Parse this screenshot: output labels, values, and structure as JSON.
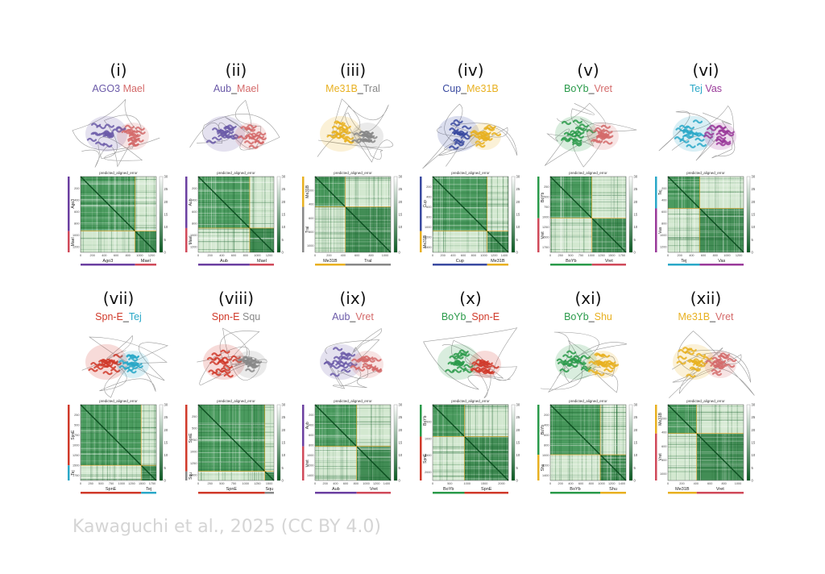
{
  "panels": [
    {
      "numeral": "(i)",
      "p1": "AGO3",
      "sep": " ",
      "p2": "Mael",
      "c1": "#6b5aa8",
      "c2": "#d46a6a",
      "pae_title": "predicted_aligned_error",
      "yaxis": [
        "Ago3",
        "Mael"
      ],
      "xaxis": [
        "Ago3",
        "Mael"
      ],
      "xticks": [
        "0",
        "200",
        "400",
        "600",
        "800",
        "1000",
        "1200"
      ],
      "yticks": [
        "200",
        "400",
        "600",
        "800",
        "1000",
        "1200"
      ],
      "split": 0.72,
      "bar1": "#6b3fa0",
      "bar2": "#d04a5a",
      "cbar": [
        "30",
        "25",
        "20",
        "15",
        "10",
        "5",
        "0"
      ]
    },
    {
      "numeral": "(ii)",
      "p1": "Aub",
      "sep": "_",
      "p2": "Mael",
      "c1": "#6b5aa8",
      "c2": "#d46a6a",
      "pae_title": "predicted_aligned_error",
      "yaxis": [
        "Aub",
        "Mael"
      ],
      "xaxis": [
        "Aub",
        "Mael"
      ],
      "xticks": [
        "0",
        "200",
        "400",
        "600",
        "800",
        "1000",
        "1200"
      ],
      "yticks": [
        "200",
        "400",
        "600",
        "800",
        "1000",
        "1200"
      ],
      "split": 0.68,
      "bar1": "#6b3fa0",
      "bar2": "#d04a5a",
      "cbar": [
        "30",
        "25",
        "20",
        "15",
        "10",
        "5",
        "0"
      ]
    },
    {
      "numeral": "(iii)",
      "p1": "Me31B",
      "sep": "_",
      "p2": "Tral",
      "c1": "#e8b020",
      "c2": "#888888",
      "pae_title": "predicted_aligned_error",
      "yaxis": [
        "Me31B",
        "Tral"
      ],
      "xaxis": [
        "Me31B",
        "Tral"
      ],
      "xticks": [
        "0",
        "200",
        "400",
        "600",
        "800",
        "1000"
      ],
      "yticks": [
        "200",
        "400",
        "600",
        "800",
        "1000"
      ],
      "split": 0.4,
      "bar1": "#e8b020",
      "bar2": "#888888",
      "cbar": [
        "30",
        "25",
        "20",
        "15",
        "10",
        "5",
        "0"
      ]
    },
    {
      "numeral": "(iv)",
      "p1": "Cup",
      "sep": "_",
      "p2": "Me31B",
      "c1": "#3a4aa0",
      "c2": "#e8b020",
      "pae_title": "predicted_aligned_error",
      "yaxis": [
        "Cup",
        "Me31B"
      ],
      "xaxis": [
        "Cup",
        "Me31B"
      ],
      "xticks": [
        "0",
        "200",
        "400",
        "600",
        "800",
        "1000",
        "1200",
        "1400"
      ],
      "yticks": [
        "200",
        "400",
        "600",
        "800",
        "1000",
        "1200",
        "1400"
      ],
      "split": 0.72,
      "bar1": "#3a4aa0",
      "bar2": "#e8b020",
      "cbar": [
        "30",
        "25",
        "20",
        "15",
        "10",
        "5",
        "0"
      ]
    },
    {
      "numeral": "(v)",
      "p1": "BoYb",
      "sep": "_",
      "p2": "Vret",
      "c1": "#2a9a4a",
      "c2": "#d46a6a",
      "pae_title": "predicted_aligned_error",
      "yaxis": [
        "BoYb",
        "Vret"
      ],
      "xaxis": [
        "BoYb",
        "Vret"
      ],
      "xticks": [
        "0",
        "250",
        "500",
        "750",
        "1000",
        "1250",
        "1500",
        "1750"
      ],
      "yticks": [
        "250",
        "500",
        "750",
        "1000",
        "1250",
        "1500",
        "1750"
      ],
      "split": 0.55,
      "bar1": "#2a9a4a",
      "bar2": "#d04a5a",
      "cbar": [
        "30",
        "25",
        "20",
        "15",
        "10",
        "5",
        "0"
      ]
    },
    {
      "numeral": "(vi)",
      "p1": "Tej",
      "sep": " ",
      "p2": "Vas",
      "c1": "#2aa8c8",
      "c2": "#9a3a9a",
      "pae_title": "predicted_aligned_error",
      "yaxis": [
        "Tej",
        "Vas"
      ],
      "xaxis": [
        "Tej",
        "Vas"
      ],
      "xticks": [
        "0",
        "200",
        "400",
        "600",
        "800",
        "1000",
        "1200"
      ],
      "yticks": [
        "200",
        "400",
        "600",
        "800",
        "1000",
        "1200"
      ],
      "split": 0.42,
      "bar1": "#2aa8c8",
      "bar2": "#9a3a9a",
      "cbar": [
        "30",
        "25",
        "20",
        "15",
        "10",
        "5",
        "0"
      ]
    },
    {
      "numeral": "(vii)",
      "p1": "Spn-E",
      "sep": "_",
      "p2": "Tej",
      "c1": "#d03a2a",
      "c2": "#2aa8c8",
      "pae_title": "predicted_aligned_error",
      "yaxis": [
        "SpnE",
        "Tej"
      ],
      "xaxis": [
        "SpnE",
        "Tej"
      ],
      "xticks": [
        "0",
        "250",
        "500",
        "750",
        "1000",
        "1250",
        "1500",
        "1750"
      ],
      "yticks": [
        "250",
        "500",
        "750",
        "1000",
        "1250",
        "1500",
        "1750"
      ],
      "split": 0.8,
      "bar1": "#d03a2a",
      "bar2": "#2aa8c8",
      "cbar": [
        "30",
        "25",
        "20",
        "15",
        "10",
        "5",
        "0"
      ]
    },
    {
      "numeral": "(viii)",
      "p1": "Spn-E",
      "sep": " ",
      "p2": "Squ",
      "c1": "#d03a2a",
      "c2": "#888888",
      "pae_title": "predicted_aligned_error",
      "yaxis": [
        "SpnE",
        "Squ"
      ],
      "xaxis": [
        "SpnE",
        "Squ"
      ],
      "xticks": [
        "0",
        "250",
        "500",
        "750",
        "1000",
        "1250",
        "1500"
      ],
      "yticks": [
        "250",
        "500",
        "750",
        "1000",
        "1250",
        "1500"
      ],
      "split": 0.88,
      "bar1": "#d03a2a",
      "bar2": "#888888",
      "cbar": [
        "30",
        "25",
        "20",
        "15",
        "10",
        "5",
        "0"
      ]
    },
    {
      "numeral": "(ix)",
      "p1": "Aub",
      "sep": "_",
      "p2": "Vret",
      "c1": "#6b5aa8",
      "c2": "#d46a6a",
      "pae_title": "predicted_aligned_error",
      "yaxis": [
        "Aub",
        "Vret"
      ],
      "xaxis": [
        "Aub",
        "Vret"
      ],
      "xticks": [
        "0",
        "200",
        "400",
        "600",
        "800",
        "1000",
        "1200",
        "1400"
      ],
      "yticks": [
        "200",
        "400",
        "600",
        "800",
        "1000",
        "1200",
        "1400"
      ],
      "split": 0.55,
      "bar1": "#6b3fa0",
      "bar2": "#d04a5a",
      "cbar": [
        "30",
        "25",
        "20",
        "15",
        "10",
        "5",
        "0"
      ]
    },
    {
      "numeral": "(x)",
      "p1": "BoYb",
      "sep": "_",
      "p2": "Spn-E",
      "c1": "#2a9a4a",
      "c2": "#d03a2a",
      "pae_title": "predicted_aligned_error",
      "yaxis": [
        "BoYb",
        "SpnE"
      ],
      "xaxis": [
        "BoYb",
        "SpnE"
      ],
      "xticks": [
        "0",
        "500",
        "1000",
        "1500",
        "2000"
      ],
      "yticks": [
        "500",
        "1000",
        "1500",
        "2000"
      ],
      "split": 0.42,
      "bar1": "#2a9a4a",
      "bar2": "#d03a2a",
      "cbar": [
        "30",
        "25",
        "20",
        "15",
        "10",
        "5",
        "0"
      ]
    },
    {
      "numeral": "(xi)",
      "p1": "BoYb",
      "sep": "_",
      "p2": "Shu",
      "c1": "#2a9a4a",
      "c2": "#e8b020",
      "pae_title": "predicted_aligned_error",
      "yaxis": [
        "BoYb",
        "Shu"
      ],
      "xaxis": [
        "BoYb",
        "Shu"
      ],
      "xticks": [
        "0",
        "200",
        "400",
        "600",
        "800",
        "1000",
        "1200",
        "1400"
      ],
      "yticks": [
        "200",
        "400",
        "600",
        "800",
        "1000",
        "1200",
        "1400"
      ],
      "split": 0.66,
      "bar1": "#2a9a4a",
      "bar2": "#e8b020",
      "cbar": [
        "30",
        "25",
        "20",
        "15",
        "10",
        "5",
        "0"
      ]
    },
    {
      "numeral": "(xii)",
      "p1": "Me31B",
      "sep": "_",
      "p2": "Vret",
      "c1": "#e8b020",
      "c2": "#d46a6a",
      "pae_title": "predicted_aligned_error",
      "yaxis": [
        "Me31B",
        "Vret"
      ],
      "xaxis": [
        "Me31B",
        "Vret"
      ],
      "xticks": [
        "0",
        "200",
        "400",
        "600",
        "800",
        "1000"
      ],
      "yticks": [
        "200",
        "400",
        "600",
        "800",
        "1000"
      ],
      "split": 0.38,
      "bar1": "#e8b020",
      "bar2": "#d04a5a",
      "cbar": [
        "30",
        "25",
        "20",
        "15",
        "10",
        "5",
        "0"
      ]
    }
  ],
  "footer": "Kawaguchi et al., 2025 (CC BY 4.0)"
}
